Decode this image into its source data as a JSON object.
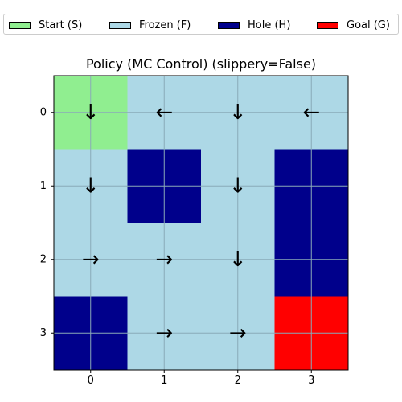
{
  "chart_data": {
    "type": "heatmap",
    "title": "Policy (MC Control) (slippery=False)",
    "x_ticks": [
      "0",
      "1",
      "2",
      "3"
    ],
    "y_ticks": [
      "0",
      "1",
      "2",
      "3"
    ],
    "xlim": [
      -0.5,
      3.5
    ],
    "ylim": [
      3.5,
      -0.5
    ],
    "grid": true,
    "legend_position": "top",
    "legend": [
      {
        "label": "Start (S)",
        "color": "#90ee90"
      },
      {
        "label": "Frozen (F)",
        "color": "#add8e6"
      },
      {
        "label": "Hole (H)",
        "color": "#00008b"
      },
      {
        "label": "Goal (G)",
        "color": "#ff0000"
      }
    ],
    "grid_map": [
      [
        "S",
        "F",
        "F",
        "F"
      ],
      [
        "F",
        "H",
        "F",
        "H"
      ],
      [
        "F",
        "F",
        "F",
        "H"
      ],
      [
        "H",
        "F",
        "F",
        "G"
      ]
    ],
    "policy": [
      [
        "↓",
        "←",
        "↓",
        "←"
      ],
      [
        "↓",
        "",
        "↓",
        ""
      ],
      [
        "→",
        "→",
        "↓",
        ""
      ],
      [
        "",
        "→",
        "→",
        ""
      ]
    ]
  }
}
